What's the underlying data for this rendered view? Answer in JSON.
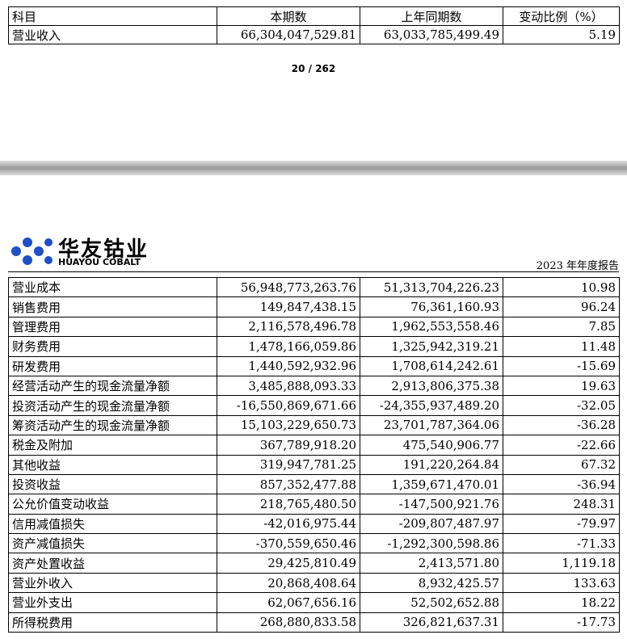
{
  "top_table": {
    "header": [
      "科目",
      "本期数",
      "上年同期数",
      "变动比例（%）"
    ],
    "rows": [
      [
        "营业收入",
        "66,304,047,529.81",
        "63,033,785,499.49",
        "5.19"
      ]
    ]
  },
  "page_number": "20 / 262",
  "logo": {
    "cn": "华友钴业",
    "en": "HUAYOU COBALT"
  },
  "report_title": "2023 年年度报告",
  "table": {
    "rows": [
      [
        "营业成本",
        "56,948,773,263.76",
        "51,313,704,226.23",
        "10.98"
      ],
      [
        "销售费用",
        "149,847,438.15",
        "76,361,160.93",
        "96.24"
      ],
      [
        "管理费用",
        "2,116,578,496.78",
        "1,962,553,558.46",
        "7.85"
      ],
      [
        "财务费用",
        "1,478,166,059.86",
        "1,325,942,319.21",
        "11.48"
      ],
      [
        "研发费用",
        "1,440,592,932.96",
        "1,708,614,242.61",
        "-15.69"
      ],
      [
        "经营活动产生的现金流量净额",
        "3,485,888,093.33",
        "2,913,806,375.38",
        "19.63"
      ],
      [
        "投资活动产生的现金流量净额",
        "-16,550,869,671.66",
        "-24,355,937,489.20",
        "-32.05"
      ],
      [
        "筹资活动产生的现金流量净额",
        "15,103,229,650.73",
        "23,701,787,364.06",
        "-36.28"
      ],
      [
        "税金及附加",
        "367,789,918.20",
        "475,540,906.77",
        "-22.66"
      ],
      [
        "其他收益",
        "319,947,781.25",
        "191,220,264.84",
        "67.32"
      ],
      [
        "投资收益",
        "857,352,477.88",
        "1,359,671,470.01",
        "-36.94"
      ],
      [
        "公允价值变动收益",
        "218,765,480.50",
        "-147,500,921.76",
        "248.31"
      ],
      [
        "信用减值损失",
        "-42,016,975.44",
        "-209,807,487.97",
        "-79.97"
      ],
      [
        "资产减值损失",
        "-370,559,650.46",
        "-1,292,300,598.86",
        "-71.33"
      ],
      [
        "资产处置收益",
        "29,425,810.49",
        "2,413,571.80",
        "1,119.18"
      ],
      [
        "营业外收入",
        "20,868,408.64",
        "8,932,425.57",
        "133.63"
      ],
      [
        "营业外支出",
        "62,067,656.16",
        "52,502,652.88",
        "18.22"
      ],
      [
        "所得税费用",
        "268,880,833.58",
        "326,821,637.31",
        "-17.73"
      ]
    ]
  }
}
